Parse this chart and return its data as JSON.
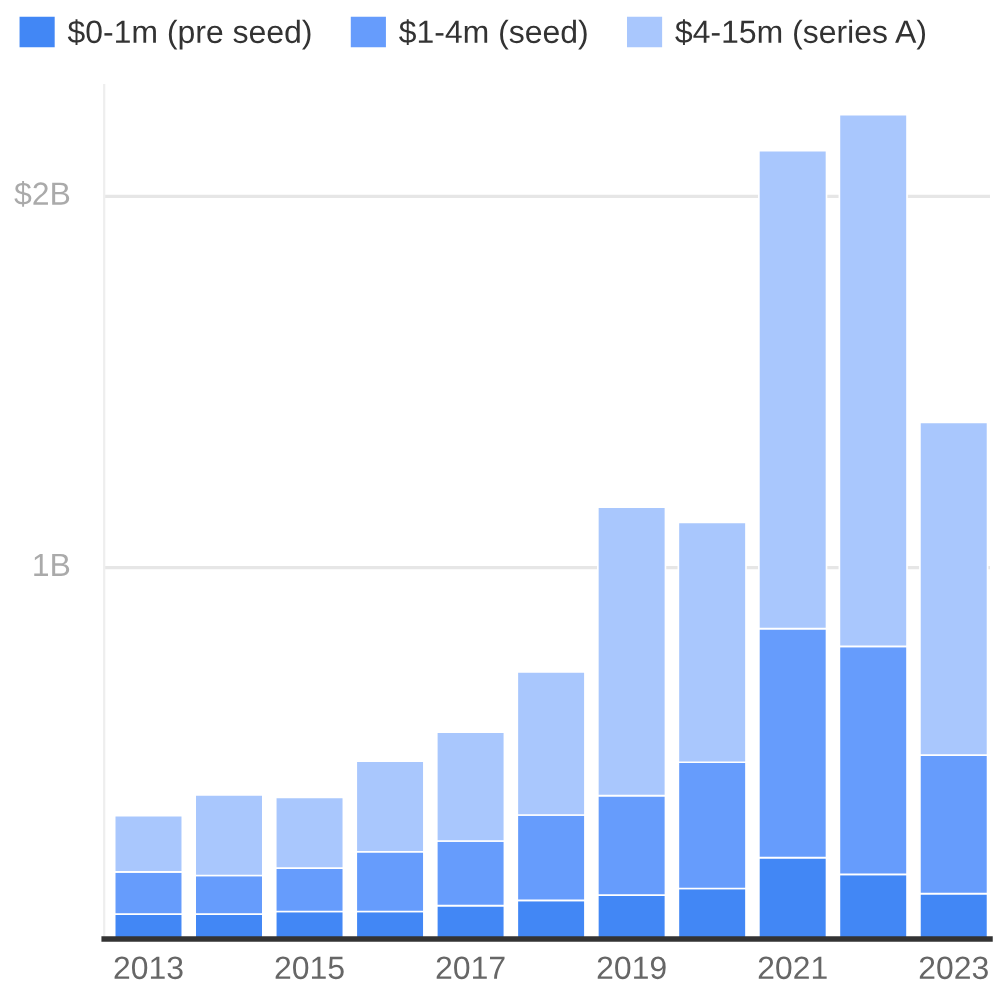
{
  "chart_data": {
    "type": "bar",
    "stacked": true,
    "categories": [
      "2013",
      null,
      "2015",
      null,
      "2017",
      null,
      "2019",
      null,
      "2021",
      null,
      "2023"
    ],
    "series": [
      {
        "name": "$0-1m (pre seed)",
        "color": "#4287f5",
        "values": [
          0.067,
          0.067,
          0.074,
          0.074,
          0.09,
          0.104,
          0.118,
          0.136,
          0.219,
          0.174,
          0.122
        ]
      },
      {
        "name": "$1-4m (seed)",
        "color": "#669cfc",
        "values": [
          0.114,
          0.104,
          0.117,
          0.161,
          0.174,
          0.23,
          0.268,
          0.34,
          0.617,
          0.614,
          0.373
        ]
      },
      {
        "name": "$4-15m (series A)",
        "color": "#a9c7fd",
        "values": [
          0.151,
          0.217,
          0.19,
          0.244,
          0.293,
          0.385,
          0.777,
          0.646,
          1.287,
          1.432,
          0.896
        ]
      }
    ],
    "ylim": [
      0,
      2.3
    ],
    "yticks": [
      {
        "value": 1,
        "label": "1B"
      },
      {
        "value": 2,
        "label": "$2B"
      }
    ],
    "grid": "y",
    "legend": "top left"
  }
}
